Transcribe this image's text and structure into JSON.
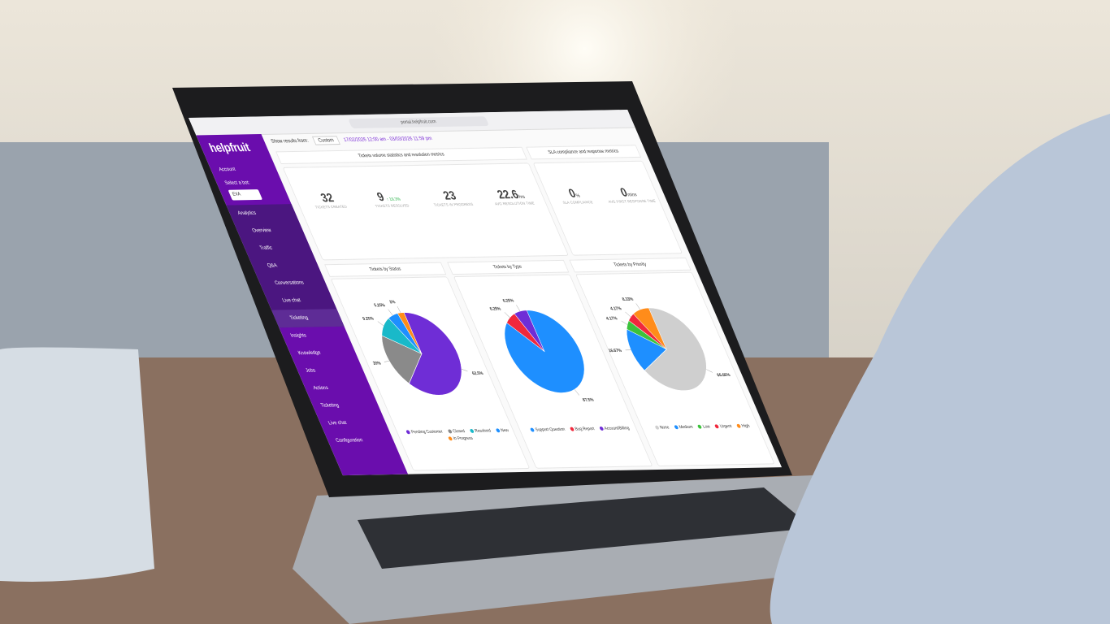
{
  "browser": {
    "url": "portal.helpfruit.com"
  },
  "sidebar": {
    "logo": "helpfruit",
    "account": "Account",
    "select_label": "Select a bot:",
    "bot": "EVA",
    "analytics": "Analytics",
    "analytics_items": [
      "Overview",
      "Traffic",
      "Q&A",
      "Conversations",
      "Live chat",
      "Ticketing"
    ],
    "menu": [
      "Insights",
      "Knowledge",
      "Jobs",
      "Actions",
      "Ticketing",
      "Live chat",
      "Configuration"
    ]
  },
  "filter": {
    "label": "Show results from:",
    "mode": "Custom",
    "range": "17/02/2026 12:00 am - 03/03/2026 11:59 pm"
  },
  "volume": {
    "title": "Tickets volume statistics and resolution metrics",
    "metrics": [
      {
        "value": "32",
        "label": "TICKETS CREATED"
      },
      {
        "value": "9",
        "trend": "↑ 19.3%",
        "label": "TICKETS RESOLVED"
      },
      {
        "value": "23",
        "label": "TICKETS IN PROGRESS"
      },
      {
        "value": "22.6",
        "unit": "hrs",
        "label": "AVG RESOLUTION TIME"
      }
    ]
  },
  "sla": {
    "title": "SLA compliance and response metrics",
    "metrics": [
      {
        "value": "0",
        "unit": "%",
        "label": "SLA COMPLIANCE"
      },
      {
        "value": "0",
        "unit": "mins",
        "label": "AVG FIRST RESPONSE TIME"
      }
    ]
  },
  "chart_data": [
    {
      "type": "pie",
      "title": "Tickets by Status",
      "categories": [
        "Pending Customer",
        "Closed",
        "Resolved",
        "New",
        "In Progress"
      ],
      "values": [
        62.5,
        20,
        9.25,
        5.25,
        3
      ],
      "value_labels": [
        "62.5%",
        "20%",
        "9.25%",
        "5.25%",
        "3%"
      ],
      "colors": [
        "#6f2dd6",
        "#8a8a8a",
        "#19b9c9",
        "#1e8fff",
        "#ff8c1a"
      ]
    },
    {
      "type": "pie",
      "title": "Tickets by Type",
      "categories": [
        "Support Question",
        "Bug Report",
        "Account/Billing"
      ],
      "values": [
        87.5,
        6.25,
        6.25
      ],
      "value_labels": [
        "87.5%",
        "6.25%",
        "6.25%"
      ],
      "colors": [
        "#1e8fff",
        "#f0283c",
        "#6f2dd6"
      ]
    },
    {
      "type": "pie",
      "title": "Tickets by Priority",
      "categories": [
        "None",
        "Medium",
        "Low",
        "Urgent",
        "High"
      ],
      "values": [
        66.66,
        16.67,
        4.17,
        4.17,
        8.33
      ],
      "value_labels": [
        "66.66%",
        "16.67%",
        "4.17%",
        "4.17%",
        "8.33%"
      ],
      "colors": [
        "#cfcfcf",
        "#1e8fff",
        "#3cc23c",
        "#f0283c",
        "#ff8c1a"
      ]
    }
  ]
}
